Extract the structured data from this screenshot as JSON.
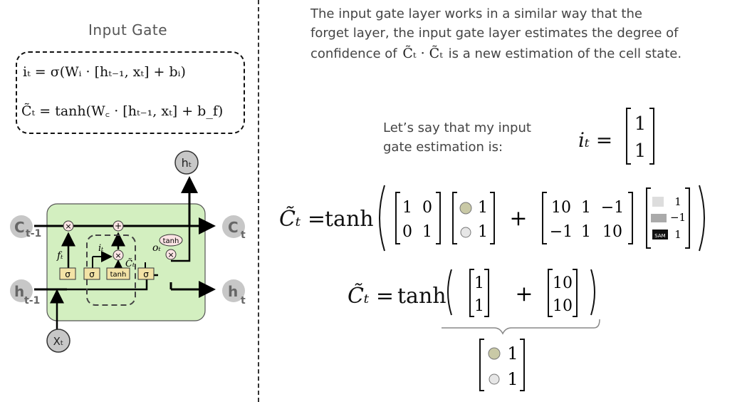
{
  "title": "Input Gate",
  "equations": {
    "eq1": "iₜ = σ(Wᵢ · [hₜ₋₁, xₜ] + bᵢ)",
    "eq2": "C̃ₜ = tanh(W꜀ · [hₜ₋₁, xₜ] + b_f)"
  },
  "description": {
    "line1": "The input gate layer works in a similar way that the",
    "line2": "forget layer, the input gate layer estimates the degree of",
    "line3_prefix": "confidence of",
    "line3_mid": "C̃ₜ · C̃ₜ",
    "line3_suffix": "is a new estimation of the cell state."
  },
  "estimation": {
    "line1": "Let’s say that my input",
    "line2": "gate estimation is:",
    "lhs": "iₜ =",
    "values": [
      "1",
      "1"
    ]
  },
  "diagram": {
    "c_prev_main": "C",
    "c_prev_sub": "t-1",
    "c_next_main": "C",
    "c_next_sub": "t",
    "h_prev_main": "h",
    "h_prev_sub": "t-1",
    "h_next_main": "h",
    "h_next_sub": "t",
    "h_top": "hₜ",
    "x_bottom": "Xₜ",
    "gate_sigma1": "σ",
    "gate_sigma2": "σ",
    "gate_tanh": "tanh",
    "gate_sigma3": "σ",
    "op_times1": "×",
    "op_plus": "+",
    "op_times2": "×",
    "op_times3": "×",
    "op_tanh": "tanh",
    "label_f": "fₜ",
    "label_i": "iₜ",
    "label_c": "C̃ₜ",
    "label_o": "oₜ"
  },
  "formula1": {
    "lhs": "C̃ₜ =",
    "func": "tanh",
    "m1": [
      [
        "1",
        "0"
      ],
      [
        "0",
        "1"
      ]
    ],
    "v1": [
      "1",
      "1"
    ],
    "plus": "+",
    "m2": [
      [
        "10",
        "1",
        "−1"
      ],
      [
        "−1",
        "1",
        "10"
      ]
    ],
    "v2": [
      "1",
      "−1",
      "1"
    ],
    "v2_icon3_text": "SAM"
  },
  "formula2": {
    "lhs": "C̃ₜ =",
    "func": "tanh",
    "v1": [
      "1",
      "1"
    ],
    "plus": "+",
    "v2": [
      "10",
      "10"
    ]
  },
  "result": {
    "values": [
      "1",
      "1"
    ]
  }
}
